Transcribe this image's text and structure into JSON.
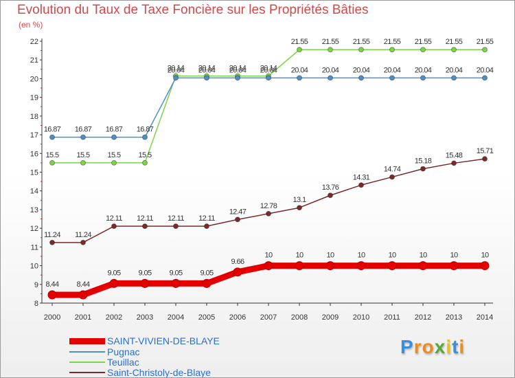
{
  "chart_data": {
    "type": "line",
    "title": "Evolution du Taux de Taxe Foncière sur les Propriétés Bâties",
    "ylabel": "(en %)",
    "xlabel": "",
    "ylim": [
      8,
      22
    ],
    "yticks": [
      "8",
      "9",
      "10",
      "11",
      "12",
      "13",
      "14",
      "15",
      "16",
      "17",
      "18",
      "19",
      "20",
      "21",
      "22"
    ],
    "categories": [
      "2000",
      "2001",
      "2002",
      "2003",
      "2004",
      "2005",
      "2006",
      "2007",
      "2008",
      "2009",
      "2010",
      "2011",
      "2012",
      "2013",
      "2014"
    ],
    "grid": false,
    "legend_position": "bottom-left",
    "series": [
      {
        "name": "SAINT-VIVIEN-DE-BLAYE",
        "color": "#e40000",
        "values": [
          8.44,
          8.44,
          9.05,
          9.05,
          9.05,
          9.05,
          9.66,
          10,
          10,
          10,
          10,
          10,
          10,
          10,
          10
        ],
        "labels": [
          "8.44",
          "8.44",
          "9.05",
          "9.05",
          "9.05",
          "9.05",
          "9.66",
          "10",
          "10",
          "10",
          "10",
          "10",
          "10",
          "10",
          "10"
        ]
      },
      {
        "name": "Pugnac",
        "color": "#4f8fc8",
        "values": [
          16.87,
          16.87,
          16.87,
          16.87,
          20.04,
          20.04,
          20.04,
          20.04,
          20.04,
          20.04,
          20.04,
          20.04,
          20.04,
          20.04,
          20.04
        ],
        "labels": [
          "16.87",
          "16.87",
          "16.87",
          "16.87",
          "20.04",
          "20.04",
          "20.04",
          "20.04",
          "20.04",
          "20.04",
          "20.04",
          "20.04",
          "20.04",
          "20.04",
          "20.04"
        ]
      },
      {
        "name": "Teuillac",
        "color": "#7ed348",
        "values": [
          15.5,
          15.5,
          15.5,
          15.5,
          20.14,
          20.14,
          20.14,
          20.14,
          21.55,
          21.55,
          21.55,
          21.55,
          21.55,
          21.55,
          21.55
        ],
        "labels": [
          "15.5",
          "15.5",
          "15.5",
          "15.5",
          "20.14",
          "20.14",
          "20.14",
          "20.14",
          "21.55",
          "21.55",
          "21.55",
          "21.55",
          "21.55",
          "21.55",
          "21.55"
        ]
      },
      {
        "name": "Saint-Christoly-de-Blaye",
        "color": "#7a2a2a",
        "values": [
          11.24,
          11.24,
          12.11,
          12.11,
          12.11,
          12.11,
          12.47,
          12.78,
          13.1,
          13.76,
          14.31,
          14.74,
          15.18,
          15.48,
          15.71
        ],
        "labels": [
          "11.24",
          "11.24",
          "12.11",
          "12.11",
          "12.11",
          "12.11",
          "12.47",
          "12.78",
          "13.1",
          "13.76",
          "14.31",
          "14.74",
          "15.18",
          "15.48",
          "15.71"
        ]
      }
    ]
  },
  "brand": {
    "letters": [
      "P",
      "r",
      "o",
      "x",
      "i",
      "t",
      "i"
    ]
  }
}
